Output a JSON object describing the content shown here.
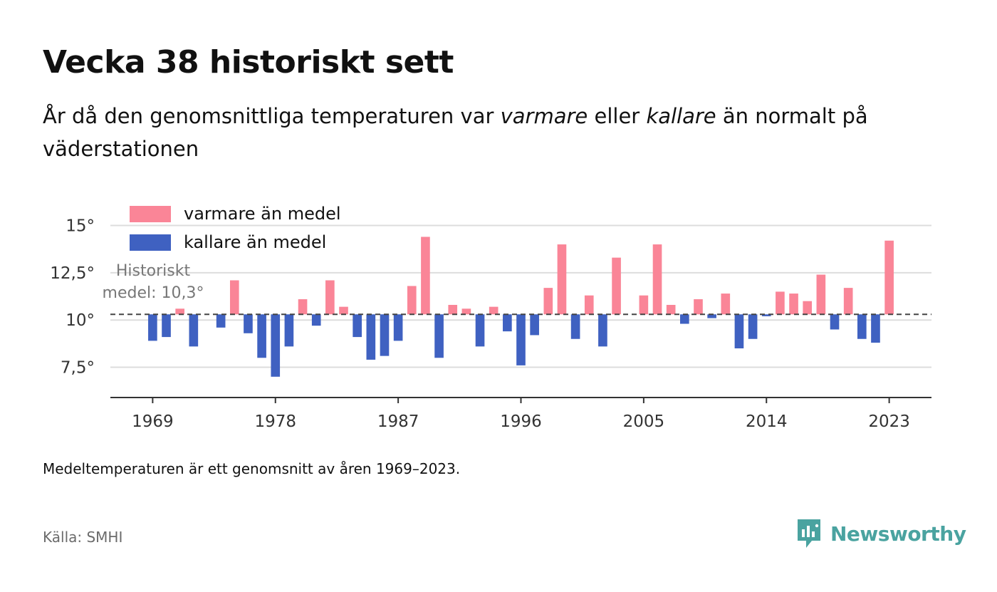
{
  "header": {
    "title": "Vecka 38 historiskt sett",
    "subtitle_before": "År då den genomsnittliga temperaturen var ",
    "subtitle_warm": "varmare",
    "subtitle_middle": " eller ",
    "subtitle_cold": "kallare",
    "subtitle_after": " än normalt på väderstationen"
  },
  "footer": {
    "note": "Medeltemperaturen är ett genomsnitt av åren 1969–2023.",
    "source": "Källa: SMHI",
    "brand": "Newsworthy",
    "brand_icon": "newsworthy-logo-icon"
  },
  "colors": {
    "warm": "#fa8597",
    "cold": "#3f61c1",
    "brand": "#4aa3a0",
    "grid": "#dddddd"
  },
  "chart_data": {
    "type": "bar",
    "baseline": 10.3,
    "baseline_label": [
      "Historiskt",
      "medel: 10,3°"
    ],
    "x": [
      1969,
      1970,
      1971,
      1972,
      1973,
      1974,
      1975,
      1976,
      1977,
      1978,
      1979,
      1980,
      1981,
      1982,
      1983,
      1984,
      1985,
      1986,
      1987,
      1988,
      1989,
      1990,
      1991,
      1992,
      1993,
      1994,
      1995,
      1996,
      1997,
      1998,
      1999,
      2000,
      2001,
      2002,
      2003,
      2004,
      2005,
      2006,
      2007,
      2008,
      2009,
      2010,
      2011,
      2012,
      2013,
      2014,
      2015,
      2016,
      2017,
      2018,
      2019,
      2020,
      2021,
      2022,
      2023
    ],
    "values": [
      8.9,
      9.1,
      10.6,
      8.6,
      null,
      9.6,
      12.1,
      9.3,
      8.0,
      7.0,
      8.6,
      11.1,
      9.7,
      12.1,
      10.7,
      9.1,
      7.9,
      8.1,
      8.9,
      11.8,
      14.4,
      8.0,
      10.8,
      10.6,
      8.6,
      10.7,
      9.4,
      7.6,
      9.2,
      11.7,
      14.0,
      9.0,
      11.3,
      8.6,
      13.3,
      null,
      11.3,
      14.0,
      10.8,
      9.8,
      11.1,
      10.1,
      11.4,
      8.5,
      9.0,
      10.2,
      11.5,
      11.4,
      11.0,
      12.4,
      9.5,
      11.7,
      9.0,
      8.8,
      14.2
    ],
    "series": [
      {
        "name": "varmare än medel",
        "color": "#fa8597"
      },
      {
        "name": "kallare än medel",
        "color": "#3f61c1"
      }
    ],
    "xticks": [
      "1969",
      "1978",
      "1987",
      "1996",
      "2005",
      "2014",
      "2023"
    ],
    "yticks": [
      "7,5°",
      "10°",
      "12,5°",
      "15°"
    ],
    "ytick_values": [
      7.5,
      10,
      12.5,
      15
    ],
    "ylim": [
      5.9,
      16.0
    ],
    "xlim": [
      1965.9,
      2026.1
    ],
    "grid": true,
    "legend_position": "top-left"
  }
}
